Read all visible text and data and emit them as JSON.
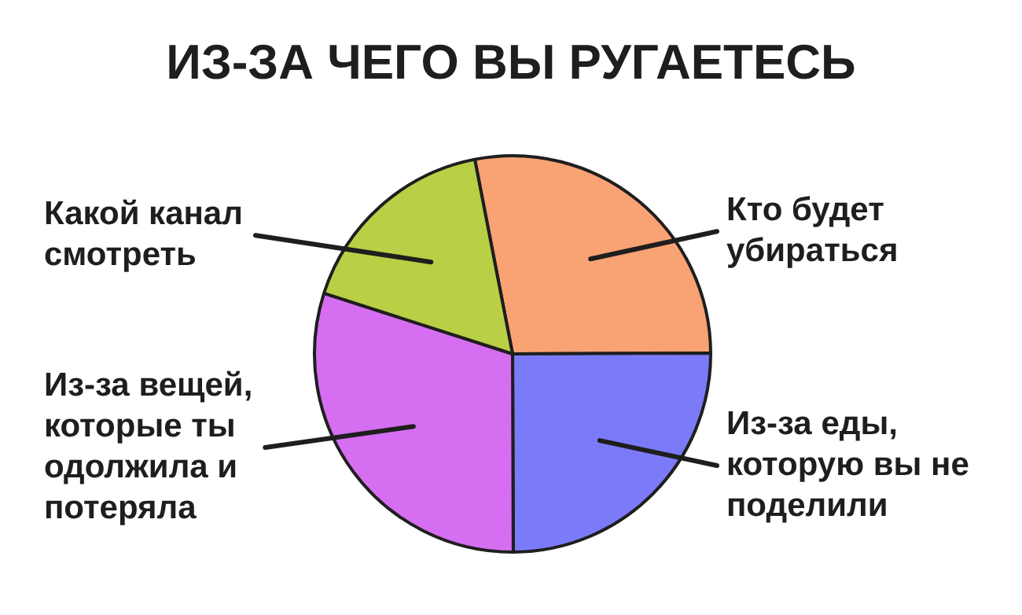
{
  "chart_data": {
    "type": "pie",
    "title": "ИЗ-ЗА ЧЕГО ВЫ РУГАЕТЕСЬ",
    "categories": [
      "Кто будет убираться",
      "Из-за еды, которую вы не поделили",
      "Из-за вещей, которые ты одолжила и потеряла",
      "Какой канал смотреть"
    ],
    "values": [
      28,
      25,
      30,
      17
    ],
    "colors": [
      "#f9a274",
      "#7b7bfa",
      "#d56ef0",
      "#b9cf45"
    ],
    "legend": false
  }
}
